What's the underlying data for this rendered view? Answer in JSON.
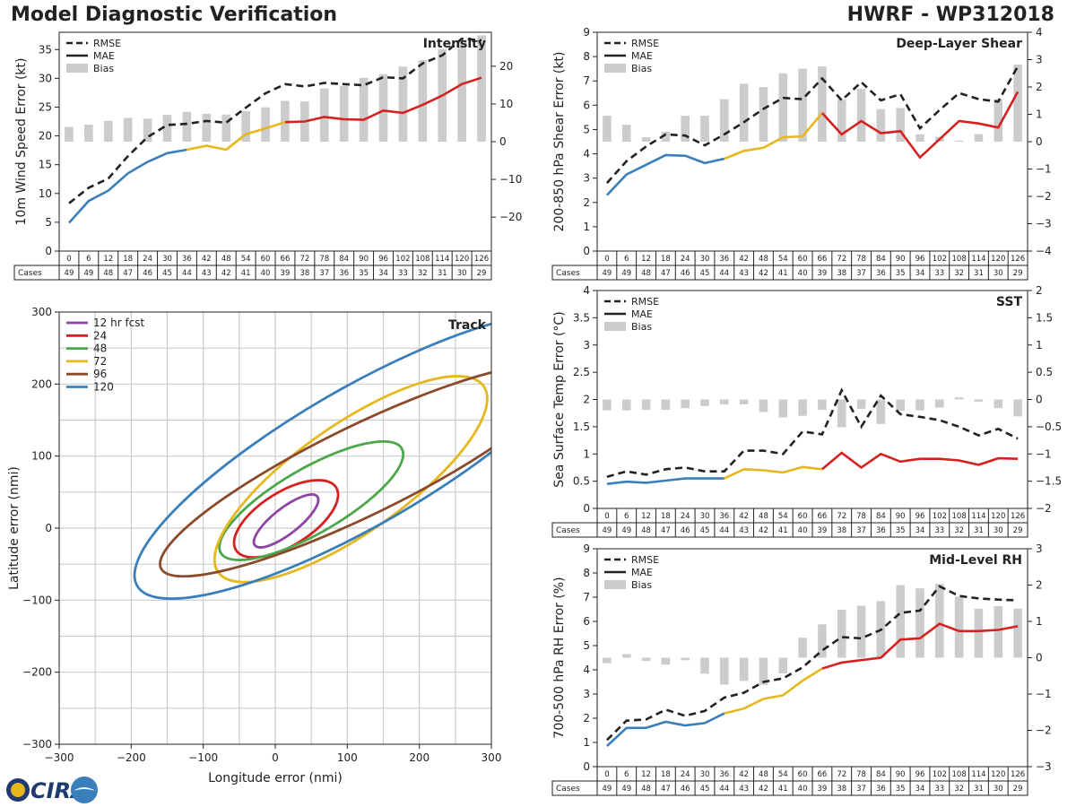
{
  "header": {
    "title": "Model Diagnostic Verification",
    "model": "HWRF - WP312018"
  },
  "logo": {
    "text": "CIRA"
  },
  "legend_labels": {
    "rmse": "RMSE",
    "mae": "MAE",
    "bias": "Bias"
  },
  "colors": {
    "blue": "#3a7fba",
    "yellow": "#e6b71e",
    "red": "#d62121",
    "black": "#222222",
    "bias": "#cccccc",
    "purple": "#8e44a4",
    "green": "#4aa84a",
    "brown": "#8b4a2b"
  },
  "table": {
    "cases_label": "Cases",
    "hours": [
      "0",
      "6",
      "12",
      "18",
      "24",
      "30",
      "36",
      "42",
      "48",
      "54",
      "60",
      "66",
      "72",
      "78",
      "84",
      "90",
      "96",
      "102",
      "108",
      "114",
      "120",
      "126"
    ],
    "cases": [
      "49",
      "49",
      "48",
      "47",
      "46",
      "45",
      "44",
      "43",
      "42",
      "41",
      "40",
      "39",
      "38",
      "37",
      "36",
      "35",
      "34",
      "33",
      "32",
      "31",
      "30",
      "29"
    ]
  },
  "chart_data": [
    {
      "id": "intensity",
      "type": "line+bar",
      "title": "Intensity",
      "ylabel": "10m Wind Speed Error (kt)",
      "ylim": [
        0,
        38
      ],
      "yticks": [
        0,
        5,
        10,
        15,
        20,
        25,
        30,
        35
      ],
      "y2lim": [
        -29,
        29
      ],
      "y2ticks": [
        -20,
        -10,
        0,
        10,
        20
      ],
      "rmse": [
        8.3,
        11.0,
        12.6,
        16.5,
        19.8,
        21.9,
        22.1,
        22.6,
        22.3,
        24.9,
        27.4,
        29.0,
        28.6,
        29.2,
        29.0,
        28.8,
        30.2,
        30.0,
        32.6,
        34.0,
        36.9,
        36.6
      ],
      "mae": [
        4.9,
        8.7,
        10.5,
        13.5,
        15.5,
        17.0,
        17.6,
        18.3,
        17.6,
        20.3,
        21.3,
        22.4,
        22.5,
        23.3,
        22.9,
        22.8,
        24.4,
        24.0,
        25.4,
        27.0,
        29.0,
        30.1
      ],
      "bias": [
        3.9,
        4.5,
        5.5,
        6.3,
        6.1,
        7.1,
        7.9,
        7.4,
        7.2,
        8.1,
        9.1,
        10.8,
        10.7,
        14.1,
        14.8,
        16.9,
        17.9,
        19.9,
        21.6,
        24.6,
        27.0,
        28.2
      ]
    },
    {
      "id": "shear",
      "type": "line+bar",
      "title": "Deep-Layer Shear",
      "ylabel": "200-850 hPa Shear Error (kt)",
      "ylim": [
        0,
        9
      ],
      "yticks": [
        0,
        1,
        2,
        3,
        4,
        5,
        6,
        7,
        8,
        9
      ],
      "y2lim": [
        -4,
        4
      ],
      "y2ticks": [
        -4,
        -3,
        -2,
        -1,
        0,
        1,
        2,
        3,
        4
      ],
      "rmse": [
        2.8,
        3.7,
        4.3,
        4.8,
        4.75,
        4.35,
        4.8,
        5.3,
        5.85,
        6.3,
        6.25,
        7.1,
        6.2,
        6.95,
        6.2,
        6.45,
        5.05,
        5.8,
        6.5,
        6.25,
        6.15,
        7.6
      ],
      "mae": [
        2.3,
        3.15,
        3.55,
        3.95,
        3.92,
        3.62,
        3.8,
        4.12,
        4.25,
        4.68,
        4.72,
        5.68,
        4.8,
        5.35,
        4.85,
        4.93,
        3.85,
        4.6,
        5.35,
        5.25,
        5.08,
        6.55
      ],
      "bias": [
        0.95,
        0.62,
        0.16,
        0.36,
        0.95,
        0.95,
        1.55,
        2.12,
        2.0,
        2.5,
        2.67,
        2.75,
        1.55,
        1.93,
        1.19,
        1.23,
        0.27,
        0.18,
        0.04,
        0.28,
        1.55,
        2.82
      ]
    },
    {
      "id": "sst",
      "type": "line+bar",
      "title": "SST",
      "ylabel": "Sea Surface Temp Error (°C)",
      "ylim": [
        0,
        4
      ],
      "yticks": [
        0,
        0.5,
        1,
        1.5,
        2,
        2.5,
        3,
        3.5,
        4
      ],
      "y2lim": [
        -2,
        2
      ],
      "y2ticks": [
        -2,
        -1.5,
        -1,
        -0.5,
        0,
        0.5,
        1,
        1.5,
        2
      ],
      "rmse": [
        0.58,
        0.68,
        0.62,
        0.72,
        0.75,
        0.68,
        0.68,
        1.06,
        1.06,
        1.0,
        1.41,
        1.36,
        2.17,
        1.5,
        2.07,
        1.73,
        1.68,
        1.62,
        1.5,
        1.34,
        1.46,
        1.28
      ],
      "mae": [
        0.45,
        0.49,
        0.47,
        0.51,
        0.55,
        0.55,
        0.55,
        0.72,
        0.7,
        0.66,
        0.76,
        0.72,
        1.02,
        0.75,
        1.0,
        0.86,
        0.91,
        0.91,
        0.88,
        0.8,
        0.92,
        0.91
      ],
      "bias": [
        -0.2,
        -0.2,
        -0.19,
        -0.19,
        -0.16,
        -0.12,
        -0.09,
        -0.09,
        -0.23,
        -0.33,
        -0.3,
        -0.19,
        -0.51,
        -0.17,
        -0.45,
        -0.21,
        -0.2,
        -0.15,
        0.04,
        -0.04,
        -0.16,
        -0.31
      ]
    },
    {
      "id": "rh",
      "type": "line+bar",
      "title": "Mid-Level RH",
      "ylabel": "700-500 hPa RH Error (%)",
      "ylim": [
        0,
        9
      ],
      "yticks": [
        0,
        1,
        2,
        3,
        4,
        5,
        6,
        7,
        8,
        9
      ],
      "y2lim": [
        -3,
        3
      ],
      "y2ticks": [
        -3,
        -2,
        -1,
        0,
        1,
        2,
        3
      ],
      "rmse": [
        1.1,
        1.9,
        1.95,
        2.35,
        2.1,
        2.3,
        2.85,
        3.05,
        3.5,
        3.65,
        4.1,
        4.8,
        5.35,
        5.3,
        5.65,
        6.35,
        6.45,
        7.45,
        7.05,
        6.95,
        6.9,
        6.87
      ],
      "mae": [
        0.85,
        1.6,
        1.6,
        1.85,
        1.7,
        1.8,
        2.2,
        2.4,
        2.8,
        2.95,
        3.55,
        4.05,
        4.3,
        4.4,
        4.5,
        5.25,
        5.3,
        5.9,
        5.6,
        5.6,
        5.65,
        5.8
      ],
      "bias": [
        -0.15,
        0.1,
        -0.09,
        -0.19,
        -0.07,
        -0.44,
        -0.74,
        -0.64,
        -0.75,
        -0.43,
        0.55,
        0.92,
        1.32,
        1.43,
        1.56,
        2.0,
        1.91,
        2.03,
        1.68,
        1.35,
        1.42,
        1.35
      ]
    },
    {
      "id": "track",
      "type": "ellipses",
      "title": "Track",
      "xlabel": "Longitude error (nmi)",
      "ylabel": "Latitude error (nmi)",
      "xlim": [
        -300,
        300
      ],
      "ylim": [
        -300,
        300
      ],
      "xticks": [
        -300,
        -200,
        -100,
        0,
        100,
        200,
        300
      ],
      "yticks": [
        -300,
        -200,
        -100,
        0,
        100,
        200,
        300
      ],
      "xtick_labels": [
        "−300",
        "−200",
        "−100",
        "0",
        "100",
        "200",
        "300"
      ],
      "ytick_labels": [
        "−300",
        "−200",
        "−100",
        "0",
        "100",
        "200",
        "300"
      ],
      "ellipses": [
        {
          "label": "12 hr fcst",
          "color": "#8e44a4",
          "cx": 15,
          "cy": 10,
          "a": 55,
          "b": 18,
          "angle": 38
        },
        {
          "label": "24",
          "color": "#d62121",
          "cx": 15,
          "cy": 13,
          "a": 82,
          "b": 37,
          "angle": 32
        },
        {
          "label": "48",
          "color": "#4aa84a",
          "cx": 50,
          "cy": 38,
          "a": 145,
          "b": 45,
          "angle": 30
        },
        {
          "label": "72",
          "color": "#e6b71e",
          "cx": 105,
          "cy": 68,
          "a": 225,
          "b": 75,
          "angle": 35
        },
        {
          "label": "96",
          "color": "#8b4a2b",
          "cx": 120,
          "cy": 80,
          "a": 310,
          "b": 62,
          "angle": 26
        },
        {
          "label": "120",
          "color": "#3a7fba",
          "cx": 120,
          "cy": 100,
          "a": 360,
          "b": 95,
          "angle": 30
        }
      ]
    }
  ]
}
